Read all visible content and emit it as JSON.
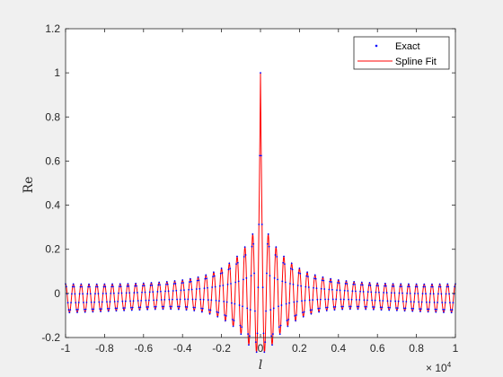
{
  "chart_data": {
    "type": "line",
    "xlabel": "l",
    "ylabel": "Re",
    "x_exponent_label": "× 10",
    "x_exponent_power": "4",
    "xlim": [
      -10000,
      10000
    ],
    "ylim": [
      -0.2,
      1.2
    ],
    "xticks": [
      -10000,
      -8000,
      -6000,
      -4000,
      -2000,
      0,
      2000,
      4000,
      6000,
      8000,
      10000
    ],
    "xtick_labels": [
      "-1",
      "-0.8",
      "-0.6",
      "-0.4",
      "-0.2",
      "0",
      "0.2",
      "0.4",
      "0.6",
      "0.8",
      "1"
    ],
    "yticks": [
      -0.2,
      0,
      0.2,
      0.4,
      0.6,
      0.8,
      1.0,
      1.2
    ],
    "ytick_labels": [
      "-0.2",
      "0",
      "0.2",
      "0.4",
      "0.6",
      "0.8",
      "1",
      "1.2"
    ],
    "grid": false,
    "legend_position": "top-right",
    "function": "sinc-like: cos(2*pi*l/400) modulated envelope, peak 1 at l=0",
    "peak_value": 1.0,
    "oscillation_period": 400,
    "sample_step": 20,
    "series": [
      {
        "name": "Exact",
        "style": "dots",
        "color": "#0000ff"
      },
      {
        "name": "Spline Fit",
        "style": "line",
        "color": "#ff0000"
      }
    ]
  },
  "colors": {
    "background": "#f0f0f0",
    "plot_area": "#ffffff",
    "axis": "#262626"
  }
}
